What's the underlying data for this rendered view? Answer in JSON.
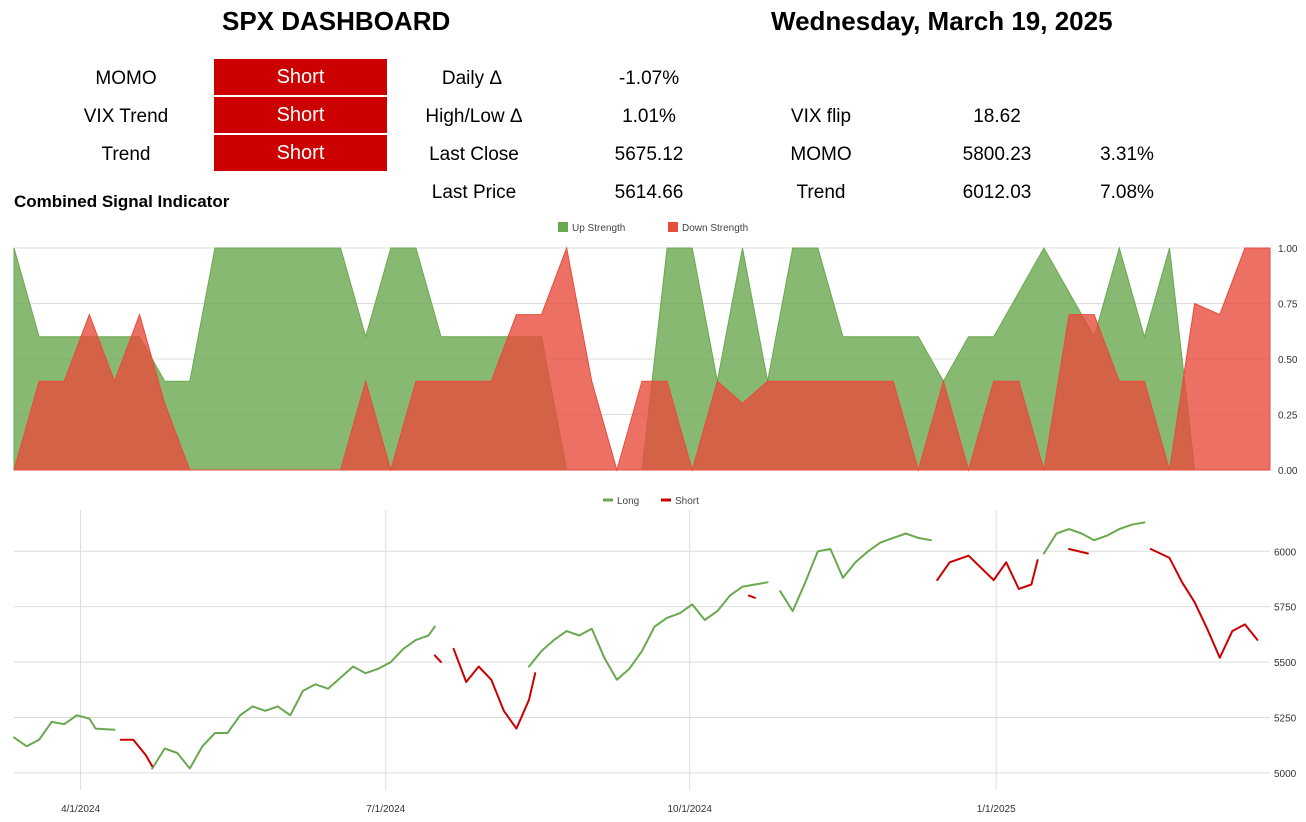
{
  "header": {
    "title": "SPX DASHBOARD",
    "date": "Wednesday, March 19, 2025"
  },
  "signals": [
    {
      "label": "MOMO",
      "value": "Short"
    },
    {
      "label": "VIX Trend",
      "value": "Short"
    },
    {
      "label": "Trend",
      "value": "Short"
    }
  ],
  "stats": {
    "daily_label": "Daily Δ",
    "daily_value": "-1.07%",
    "hl_label": "High/Low Δ",
    "hl_value": "1.01%",
    "close_label": "Last Close",
    "close_value": "5675.12",
    "price_label": "Last Price",
    "price_value": "5614.66",
    "vixflip_label": "VIX flip",
    "vixflip_value": "18.62",
    "momo_label": "MOMO",
    "momo_value": "5800.23",
    "momo_pct": "3.31%",
    "trend_label": "Trend",
    "trend_value": "6012.03",
    "trend_pct": "7.08%"
  },
  "colors": {
    "signal_red": "#cc0000",
    "up": "#6aa84f",
    "down": "#e74c3c",
    "long_line": "#6aa84f",
    "short_line": "#cc0000",
    "grid": "#dddddd"
  },
  "chart_data": [
    {
      "type": "area",
      "title": "Combined Signal Indicator",
      "legend_position": "top-center",
      "ylim": [
        0,
        1
      ],
      "y_ticks": [
        "0.00",
        "0.25",
        "0.50",
        "0.75",
        "1.00"
      ],
      "grid": true,
      "series": [
        {
          "name": "Up Strength",
          "color": "#6aa84f",
          "x": [
            0,
            0.02,
            0.04,
            0.06,
            0.08,
            0.1,
            0.12,
            0.14,
            0.16,
            0.18,
            0.2,
            0.22,
            0.24,
            0.26,
            0.28,
            0.3,
            0.32,
            0.34,
            0.36,
            0.38,
            0.4,
            0.42,
            0.44,
            0.46,
            0.48,
            0.5,
            0.52,
            0.54,
            0.56,
            0.58,
            0.6,
            0.62,
            0.64,
            0.66,
            0.68,
            0.7,
            0.72,
            0.74,
            0.76,
            0.78,
            0.8,
            0.82,
            0.84,
            0.86,
            0.88,
            0.9,
            0.92,
            0.94,
            0.96,
            0.98,
            1.0
          ],
          "values": [
            1.0,
            0.6,
            0.6,
            0.6,
            0.6,
            0.6,
            0.4,
            0.4,
            1.0,
            1.0,
            1.0,
            1.0,
            1.0,
            1.0,
            0.6,
            1.0,
            1.0,
            0.6,
            0.6,
            0.6,
            0.6,
            0.6,
            0.0,
            0.0,
            0.0,
            0.0,
            1.0,
            1.0,
            0.4,
            1.0,
            0.4,
            1.0,
            1.0,
            0.6,
            0.6,
            0.6,
            0.6,
            0.4,
            0.6,
            0.6,
            0.8,
            1.0,
            0.8,
            0.6,
            1.0,
            0.6,
            1.0,
            0.0,
            0.0,
            0.0,
            0.0
          ]
        },
        {
          "name": "Down Strength",
          "color": "#e74c3c",
          "x": [
            0,
            0.02,
            0.04,
            0.06,
            0.08,
            0.1,
            0.12,
            0.14,
            0.16,
            0.18,
            0.2,
            0.22,
            0.24,
            0.26,
            0.28,
            0.3,
            0.32,
            0.34,
            0.36,
            0.38,
            0.4,
            0.42,
            0.44,
            0.46,
            0.48,
            0.5,
            0.52,
            0.54,
            0.56,
            0.58,
            0.6,
            0.62,
            0.64,
            0.66,
            0.68,
            0.7,
            0.72,
            0.74,
            0.76,
            0.78,
            0.8,
            0.82,
            0.84,
            0.86,
            0.88,
            0.9,
            0.92,
            0.94,
            0.96,
            0.98,
            1.0
          ],
          "values": [
            0.0,
            0.4,
            0.4,
            0.7,
            0.4,
            0.7,
            0.3,
            0.0,
            0.0,
            0.0,
            0.0,
            0.0,
            0.0,
            0.0,
            0.4,
            0.0,
            0.4,
            0.4,
            0.4,
            0.4,
            0.7,
            0.7,
            1.0,
            0.4,
            0.0,
            0.4,
            0.4,
            0.0,
            0.4,
            0.3,
            0.4,
            0.4,
            0.4,
            0.4,
            0.4,
            0.4,
            0.0,
            0.4,
            0.0,
            0.4,
            0.4,
            0.0,
            0.7,
            0.7,
            0.4,
            0.4,
            0.0,
            0.75,
            0.7,
            1.0,
            1.0
          ]
        }
      ]
    },
    {
      "type": "line",
      "legend_position": "top-center",
      "ylim": [
        4950,
        6150
      ],
      "y_ticks": [
        "5000",
        "5250",
        "5500",
        "5750",
        "6000"
      ],
      "x_ticks": [
        "4/1/2024",
        "7/1/2024",
        "10/1/2024",
        "1/1/2025"
      ],
      "grid": true,
      "series": [
        {
          "name": "Long",
          "color": "#6aa84f",
          "segments": [
            [
              [
                0.0,
                5160
              ],
              [
                0.01,
                5120
              ],
              [
                0.02,
                5150
              ],
              [
                0.03,
                5230
              ],
              [
                0.04,
                5220
              ],
              [
                0.05,
                5260
              ],
              [
                0.06,
                5245
              ],
              [
                0.065,
                5200
              ],
              [
                0.08,
                5195
              ]
            ],
            [
              [
                0.11,
                5020
              ],
              [
                0.12,
                5110
              ],
              [
                0.13,
                5090
              ],
              [
                0.14,
                5020
              ],
              [
                0.15,
                5120
              ],
              [
                0.16,
                5180
              ],
              [
                0.17,
                5180
              ],
              [
                0.18,
                5260
              ],
              [
                0.19,
                5300
              ],
              [
                0.2,
                5280
              ],
              [
                0.21,
                5300
              ],
              [
                0.22,
                5260
              ],
              [
                0.23,
                5370
              ],
              [
                0.24,
                5400
              ],
              [
                0.25,
                5380
              ],
              [
                0.26,
                5430
              ],
              [
                0.27,
                5480
              ],
              [
                0.28,
                5450
              ],
              [
                0.29,
                5470
              ],
              [
                0.3,
                5500
              ],
              [
                0.31,
                5560
              ],
              [
                0.32,
                5600
              ],
              [
                0.33,
                5620
              ],
              [
                0.335,
                5660
              ]
            ],
            [
              [
                0.41,
                5480
              ],
              [
                0.42,
                5550
              ],
              [
                0.43,
                5600
              ],
              [
                0.44,
                5640
              ],
              [
                0.45,
                5620
              ],
              [
                0.46,
                5650
              ],
              [
                0.47,
                5520
              ],
              [
                0.48,
                5420
              ],
              [
                0.49,
                5470
              ],
              [
                0.5,
                5550
              ],
              [
                0.51,
                5660
              ],
              [
                0.52,
                5700
              ],
              [
                0.53,
                5720
              ],
              [
                0.54,
                5760
              ],
              [
                0.55,
                5690
              ],
              [
                0.56,
                5730
              ],
              [
                0.57,
                5800
              ],
              [
                0.58,
                5840
              ],
              [
                0.59,
                5850
              ],
              [
                0.6,
                5860
              ]
            ],
            [
              [
                0.61,
                5820
              ],
              [
                0.62,
                5730
              ],
              [
                0.63,
                5860
              ],
              [
                0.64,
                6000
              ],
              [
                0.65,
                6010
              ],
              [
                0.66,
                5880
              ],
              [
                0.67,
                5950
              ],
              [
                0.68,
                6000
              ],
              [
                0.69,
                6040
              ],
              [
                0.7,
                6060
              ],
              [
                0.71,
                6080
              ],
              [
                0.72,
                6060
              ],
              [
                0.73,
                6050
              ]
            ],
            [
              [
                0.82,
                5990
              ],
              [
                0.83,
                6080
              ],
              [
                0.84,
                6100
              ],
              [
                0.85,
                6080
              ],
              [
                0.86,
                6050
              ],
              [
                0.87,
                6070
              ],
              [
                0.88,
                6100
              ],
              [
                0.89,
                6120
              ],
              [
                0.9,
                6130
              ]
            ]
          ]
        },
        {
          "name": "Short",
          "color": "#cc0000",
          "segments": [
            [
              [
                0.085,
                5150
              ],
              [
                0.095,
                5150
              ],
              [
                0.105,
                5080
              ],
              [
                0.11,
                5030
              ]
            ],
            [
              [
                0.335,
                5530
              ],
              [
                0.34,
                5500
              ]
            ],
            [
              [
                0.35,
                5560
              ],
              [
                0.36,
                5410
              ],
              [
                0.37,
                5480
              ],
              [
                0.38,
                5420
              ],
              [
                0.39,
                5280
              ],
              [
                0.4,
                5200
              ],
              [
                0.41,
                5330
              ],
              [
                0.415,
                5450
              ]
            ],
            [
              [
                0.585,
                5800
              ],
              [
                0.59,
                5790
              ]
            ],
            [
              [
                0.735,
                5870
              ],
              [
                0.745,
                5950
              ],
              [
                0.76,
                5980
              ],
              [
                0.78,
                5870
              ],
              [
                0.79,
                5950
              ],
              [
                0.8,
                5830
              ],
              [
                0.81,
                5850
              ],
              [
                0.815,
                5960
              ]
            ],
            [
              [
                0.84,
                6010
              ],
              [
                0.855,
                5990
              ]
            ],
            [
              [
                0.905,
                6010
              ],
              [
                0.92,
                5970
              ],
              [
                0.93,
                5860
              ],
              [
                0.94,
                5770
              ],
              [
                0.95,
                5650
              ],
              [
                0.96,
                5520
              ],
              [
                0.97,
                5640
              ],
              [
                0.98,
                5670
              ],
              [
                0.99,
                5600
              ]
            ]
          ]
        }
      ]
    }
  ]
}
